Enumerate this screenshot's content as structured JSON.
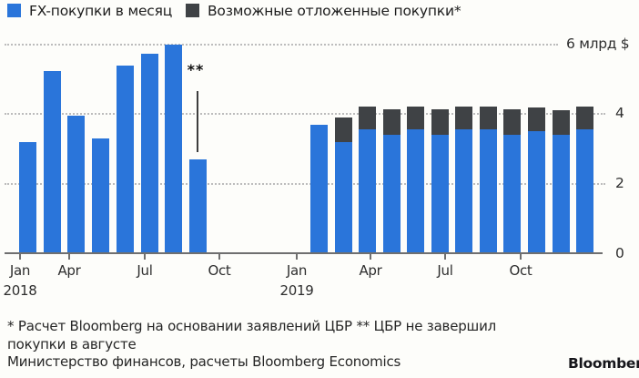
{
  "legend": [
    {
      "label": "FX-покупки в месяц",
      "color": "#2a75da"
    },
    {
      "label": "Возможные отложенные покупки*",
      "color": "#3f4245"
    }
  ],
  "colors": {
    "fx_bar": "#2a75da",
    "deferred_bar": "#3f4245",
    "background": "#fdfdfa",
    "gridline": "#bcbcbc",
    "axis": "#6f6f6f"
  },
  "chart_data": {
    "type": "bar",
    "stacked": true,
    "title": "",
    "ylabel_top": "6 млрд $",
    "yticks": [
      0,
      2,
      4
    ],
    "ylim": [
      0,
      6.3
    ],
    "grid": "horizontal-dotted",
    "legend_position": "top-left",
    "series_names": [
      "FX-покупки в месяц",
      "Возможные отложенные покупки*"
    ],
    "groups": [
      {
        "year_label": "2018",
        "months": [
          "Jan",
          "Feb",
          "Mar",
          "Apr",
          "May",
          "Jun",
          "Jul",
          "Aug"
        ],
        "fx_purchases": [
          3.2,
          5.25,
          3.95,
          3.3,
          5.4,
          5.75,
          6.0,
          2.7
        ],
        "deferred": [
          0,
          0,
          0,
          0,
          0,
          0,
          0,
          0
        ]
      },
      {
        "year_label": "2019",
        "months": [
          "Feb",
          "Mar",
          "Apr",
          "May",
          "Jun",
          "Jul",
          "Aug",
          "Sep",
          "Oct",
          "Nov",
          "Dec",
          "Jan"
        ],
        "fx_purchases": [
          3.7,
          3.2,
          3.55,
          3.4,
          3.55,
          3.4,
          3.55,
          3.55,
          3.4,
          3.5,
          3.4,
          3.55
        ],
        "deferred": [
          0,
          0.7,
          0.67,
          0.73,
          0.67,
          0.75,
          0.67,
          0.67,
          0.73,
          0.7,
          0.72,
          0.68
        ]
      }
    ],
    "x_ticks": [
      {
        "label": "Jan",
        "sub": "2018"
      },
      {
        "label": "Apr"
      },
      {
        "label": "Jul"
      },
      {
        "label": "Oct"
      },
      {
        "label": "Jan",
        "sub": "2019"
      },
      {
        "label": "Apr"
      },
      {
        "label": "Jul"
      },
      {
        "label": "Oct"
      }
    ],
    "annotation": "**"
  },
  "footnotes": {
    "line1": "* Расчет Bloomberg на основании заявлений ЦБР ** ЦБР не завершил",
    "line2": "покупки в августе",
    "line3": "Министерство финансов, расчеты Bloomberg Economics"
  },
  "logo": "Bloomberg"
}
